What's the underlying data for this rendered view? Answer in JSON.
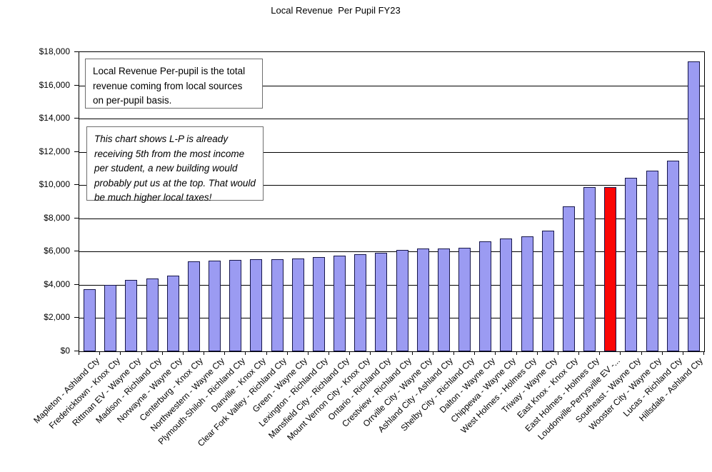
{
  "title": "Local Revenue  Per Pupil FY23",
  "annotations": {
    "box1": "Local Revenue Per-pupil is the total revenue coming from local sources on per-pupil basis.",
    "box2": "This chart shows L-P is already receiving 5th from the most income per student, a new building would probably put us at the top. That would be much higher local taxes!"
  },
  "chart_data": {
    "type": "bar",
    "title": "Local Revenue  Per Pupil FY23",
    "xlabel": "",
    "ylabel": "",
    "ylim": [
      0,
      18000
    ],
    "y_tick_step": 2000,
    "y_tick_labels": [
      "$0",
      "$2,000",
      "$4,000",
      "$6,000",
      "$8,000",
      "$10,000",
      "$12,000",
      "$14,000",
      "$16,000",
      "$18,000"
    ],
    "grid": true,
    "legend": false,
    "categories": [
      "Mapleton - Ashland Cty",
      "Fredericktown - Knox Cty",
      "Rittman EV - Wayne Cty",
      "Madison - Richland Cty",
      "Norwayne - Wayne Cty",
      "Centerburg - Knox Cty",
      "Northwestern - Wayne Cty",
      "Plymouth-Shiloh - Richland Cty",
      "Danville - Knox Cty",
      "Clear Fork Valley - Richland Cty",
      "Green - Wayne Cty",
      "Lexington - Richland Cty",
      "Mansfield City - Richland Cty",
      "Mount Vernon City - Knox Cty",
      "Ontario - Richland Cty",
      "Crestview - Richland Cty",
      "Orrville City - Wayne Cty",
      "Ashland City - Ashland Cty",
      "Shelby City - Richland Cty",
      "Dalton - Wayne Cty",
      "Chippewa - Wayne Cty",
      "West Holmes - Holmes Cty",
      "Triway - Wayne Cty",
      "East Knox - Knox Cty",
      "East Holmes - Holmes Cty",
      "Loudonville-Perrysville EV -...",
      "Southeast - Wayne Cty",
      "Wooster City - Wayne Cty",
      "Lucas  - Richland Cty",
      "Hillsdale - Ashland Cty"
    ],
    "values": [
      3750,
      4000,
      4300,
      4400,
      4550,
      5400,
      5450,
      5500,
      5550,
      5560,
      5580,
      5680,
      5750,
      5850,
      5930,
      6080,
      6170,
      6200,
      6250,
      6600,
      6790,
      6900,
      7280,
      8720,
      9880,
      9890,
      10430,
      10860,
      11480,
      17440
    ],
    "highlight_index": 25,
    "highlight_category": "Loudonville-Perrysville EV -...",
    "colors": {
      "bar_fill": "#9b9bf2",
      "bar_border": "#16164a",
      "highlight_fill": "#fb0606",
      "highlight_border": "#16164a",
      "gridline": "#000000",
      "axis": "#000000",
      "text": "#000000",
      "annotation_border": "#6e6e6e",
      "background": "#ffffff"
    }
  }
}
